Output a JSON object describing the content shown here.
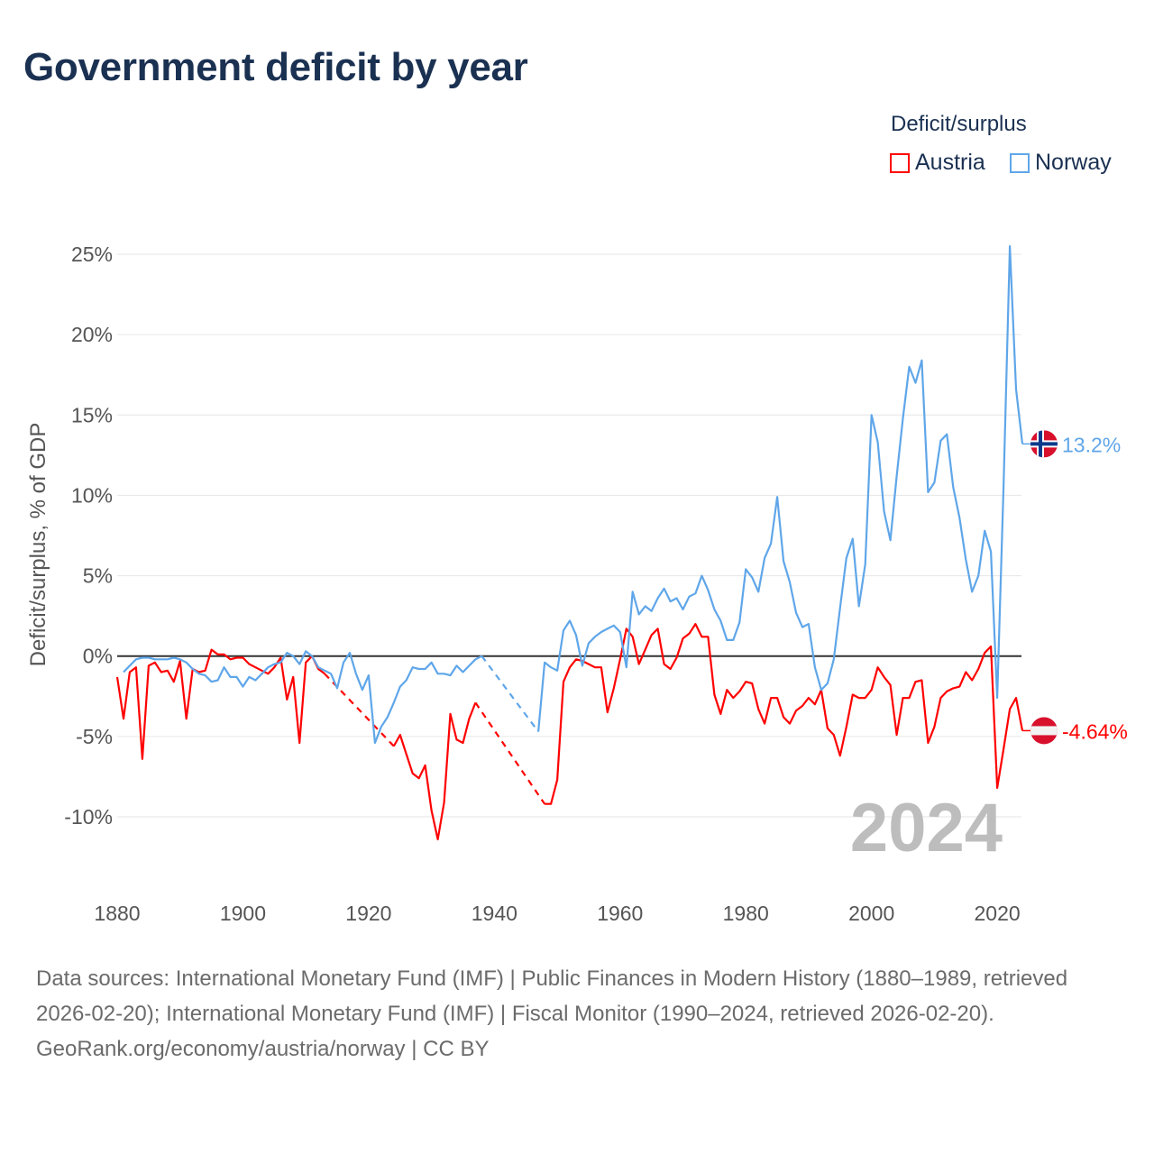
{
  "title": "Government deficit by year",
  "legend": {
    "title": "Deficit/surplus",
    "items": [
      {
        "label": "Austria",
        "color": "#ff0000"
      },
      {
        "label": "Norway",
        "color": "#5fa6e9"
      }
    ]
  },
  "chart_data": {
    "type": "line",
    "title": "Government deficit by year",
    "xlabel": "",
    "ylabel": "Deficit/surplus, % of GDP",
    "xlim": [
      1880,
      2024
    ],
    "ylim": [
      -10,
      25
    ],
    "x_start": 1880,
    "x_ticks": [
      "1880",
      "1900",
      "1920",
      "1940",
      "1960",
      "1980",
      "2000",
      "2020"
    ],
    "y_ticks": [
      {
        "value": 25,
        "label": "25%"
      },
      {
        "value": 20,
        "label": "20%"
      },
      {
        "value": 15,
        "label": "15%"
      },
      {
        "value": 10,
        "label": "10%"
      },
      {
        "value": 5,
        "label": "5%"
      },
      {
        "value": 0,
        "label": "0%"
      },
      {
        "value": -5,
        "label": "-5%"
      },
      {
        "value": -10,
        "label": "-10%"
      }
    ],
    "year_watermark": "2024",
    "grid": true,
    "legend_position": "top-right",
    "series": [
      {
        "name": "Austria",
        "color": "#ff0000",
        "end_label": "-4.64%",
        "flag": "austria-flag",
        "values": [
          -1.3,
          -3.9,
          -1.0,
          -0.7,
          -6.4,
          -0.6,
          -0.4,
          -1.0,
          -0.9,
          -1.6,
          -0.3,
          -3.9,
          -0.8,
          -1.0,
          -0.9,
          0.4,
          0.1,
          0.1,
          -0.2,
          -0.1,
          -0.1,
          -0.5,
          -0.7,
          -0.9,
          -1.1,
          -0.7,
          -0.1,
          -2.7,
          -1.3,
          -5.4,
          -0.4,
          0.0,
          -0.8,
          -1.1,
          null,
          null,
          null,
          null,
          null,
          null,
          null,
          null,
          null,
          null,
          -5.6,
          -4.9,
          -6.1,
          -7.3,
          -7.6,
          -6.8,
          -9.6,
          -11.4,
          -9.1,
          -3.6,
          -5.2,
          -5.4,
          -3.9,
          -2.9,
          null,
          null,
          null,
          null,
          null,
          null,
          null,
          null,
          null,
          null,
          -9.2,
          -9.2,
          -7.7,
          -1.6,
          -0.7,
          -0.2,
          -0.3,
          -0.5,
          -0.7,
          -0.7,
          -3.5,
          -2.0,
          -0.2,
          1.7,
          1.2,
          -0.5,
          0.4,
          1.3,
          1.7,
          -0.5,
          -0.8,
          -0.1,
          1.1,
          1.4,
          2.0,
          1.2,
          1.2,
          -2.4,
          -3.6,
          -2.1,
          -2.6,
          -2.2,
          -1.6,
          -1.7,
          -3.3,
          -4.2,
          -2.6,
          -2.6,
          -3.8,
          -4.2,
          -3.4,
          -3.1,
          -2.6,
          -3.0,
          -2.1,
          -4.5,
          -4.9,
          -6.2,
          -4.4,
          -2.4,
          -2.6,
          -2.6,
          -2.1,
          -0.7,
          -1.3,
          -1.8,
          -4.9,
          -2.6,
          -2.6,
          -1.6,
          -1.5,
          -5.4,
          -4.4,
          -2.6,
          -2.2,
          -2.0,
          -1.9,
          -1.0,
          -1.5,
          -0.8,
          0.2,
          0.6,
          -8.2,
          -5.8,
          -3.3,
          -2.6,
          -4.64
        ]
      },
      {
        "name": "Norway",
        "color": "#5fa6e9",
        "end_label": "13.2%",
        "flag": "norway-flag",
        "values": [
          null,
          -1.0,
          -0.6,
          -0.2,
          -0.1,
          -0.1,
          -0.2,
          -0.2,
          -0.2,
          -0.1,
          -0.2,
          -0.4,
          -0.8,
          -1.1,
          -1.2,
          -1.6,
          -1.5,
          -0.7,
          -1.3,
          -1.3,
          -1.9,
          -1.3,
          -1.5,
          -1.1,
          -0.7,
          -0.5,
          -0.4,
          0.2,
          0.0,
          -0.5,
          0.3,
          0.0,
          -0.7,
          -0.9,
          -1.1,
          -2.0,
          -0.4,
          0.2,
          -1.1,
          -2.1,
          -1.2,
          -5.4,
          -4.4,
          -3.8,
          -2.9,
          -1.9,
          -1.5,
          -0.7,
          -0.8,
          -0.8,
          -0.4,
          -1.1,
          -1.1,
          -1.2,
          -0.6,
          -1.0,
          -0.6,
          -0.2,
          0.0,
          null,
          null,
          null,
          null,
          null,
          null,
          null,
          null,
          -4.7,
          -0.4,
          -0.7,
          -0.9,
          1.6,
          2.2,
          1.3,
          -0.6,
          0.8,
          1.2,
          1.5,
          1.7,
          1.9,
          1.5,
          -0.7,
          4.0,
          2.6,
          3.1,
          2.8,
          3.6,
          4.2,
          3.4,
          3.6,
          2.9,
          3.7,
          3.9,
          5.0,
          4.1,
          2.9,
          2.2,
          1.0,
          1.0,
          2.1,
          5.4,
          4.9,
          4.0,
          6.1,
          7.0,
          9.9,
          5.9,
          4.6,
          2.7,
          1.8,
          2.0,
          -0.7,
          -2.1,
          -1.7,
          -0.2,
          3.0,
          6.1,
          7.3,
          3.1,
          5.7,
          15.0,
          13.3,
          9.0,
          7.2,
          11.2,
          14.8,
          18.0,
          17.0,
          18.4,
          10.2,
          10.8,
          13.4,
          13.8,
          10.5,
          8.6,
          6.0,
          4.0,
          5.0,
          7.8,
          6.5,
          -2.6,
          10.5,
          25.5,
          16.6,
          13.2
        ]
      }
    ]
  },
  "footer": {
    "sources": "Data sources: International Monetary Fund (IMF) | Public Finances in Modern History (1880–1989, retrieved 2026-02-20); International Monetary Fund (IMF) | Fiscal Monitor (1990–2024, retrieved 2026-02-20).",
    "credit": "GeoRank.org/economy/austria/norway | CC BY"
  }
}
